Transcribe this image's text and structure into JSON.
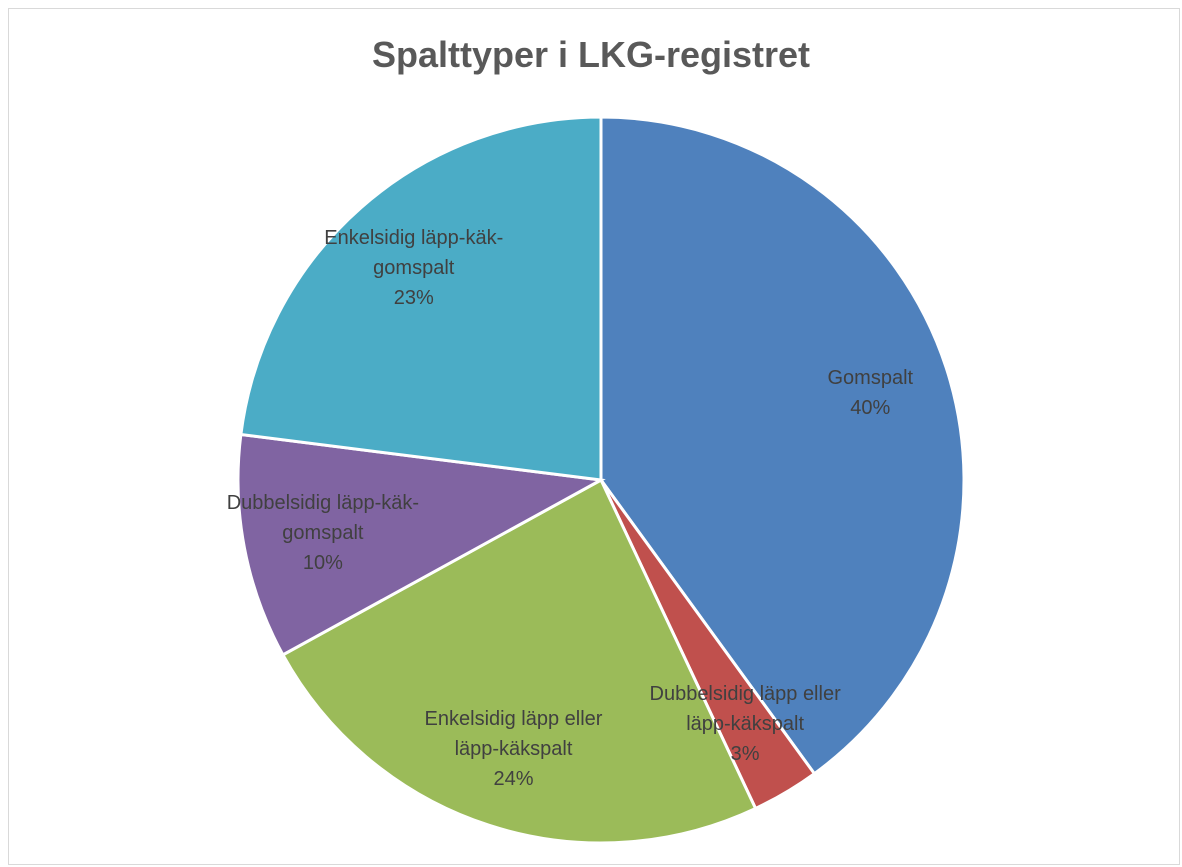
{
  "chart_data": {
    "type": "pie",
    "title": "Spalttyper i LKG-registret",
    "categories": [
      "Gomspalt",
      "Dubbelsidig läpp eller läpp-käkspalt",
      "Enkelsidig läpp eller läpp-käkspalt",
      "Dubbelsidig läpp-käk-gomspalt",
      "Enkelsidig läpp-käk-gomspalt"
    ],
    "values": [
      40,
      3,
      24,
      10,
      23
    ],
    "value_labels": [
      "40%",
      "3%",
      "24%",
      "10%",
      "23%"
    ],
    "colors": [
      "#4f81bd",
      "#c0504d",
      "#9bbb59",
      "#8064a2",
      "#4bacc6"
    ]
  }
}
